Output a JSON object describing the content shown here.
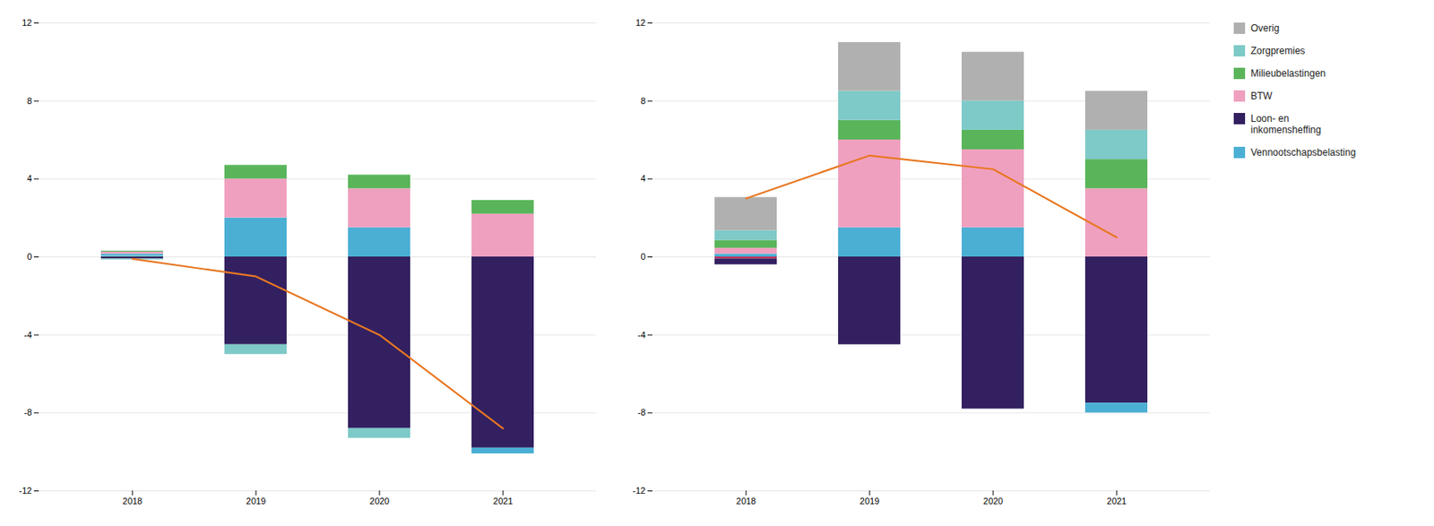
{
  "chart_data": [
    {
      "type": "bar",
      "stacked": true,
      "grid": true,
      "categories": [
        "2018",
        "2019",
        "2020",
        "2021"
      ],
      "ylim": [
        -12,
        12
      ],
      "yticks": [
        -12,
        -8,
        -4,
        0,
        4,
        8,
        12
      ],
      "series": [
        {
          "color": "#7ecac8",
          "values": [
            0.05,
            0.0,
            0.0,
            0.0
          ]
        },
        {
          "color": "#4bafd4",
          "values": [
            0.1,
            2.0,
            1.5,
            0.0
          ]
        },
        {
          "color": "#f0a0bf",
          "values": [
            0.1,
            2.0,
            2.0,
            2.2
          ]
        },
        {
          "color": "#5ab55a",
          "values": [
            0.05,
            0.7,
            0.7,
            0.7
          ]
        },
        {
          "color": "#332060",
          "values": [
            -0.1,
            -4.5,
            -8.8,
            -9.8
          ]
        },
        {
          "color": "#7ecac8",
          "values": [
            -0.05,
            -0.5,
            -0.5,
            0.0
          ]
        },
        {
          "color": "#4bafd4",
          "values": [
            0.0,
            0.0,
            0.0,
            -0.3
          ]
        },
        {
          "type": "line",
          "color": "#e87722",
          "values": [
            -0.1,
            -1.0,
            -4.0,
            -8.8
          ]
        }
      ]
    },
    {
      "type": "bar",
      "stacked": true,
      "grid": true,
      "legend": "right",
      "categories": [
        "2018",
        "2019",
        "2020",
        "2021"
      ],
      "ylim": [
        -12,
        12
      ],
      "yticks": [
        -12,
        -8,
        -4,
        0,
        4,
        8,
        12
      ],
      "series": [
        {
          "name": "Vennootschapsbelasting",
          "color": "#4bafd4",
          "values": [
            0.15,
            1.5,
            1.5,
            0.0
          ]
        },
        {
          "name": "BTW",
          "color": "#f0a0bf",
          "values": [
            0.3,
            4.5,
            4.0,
            3.5
          ]
        },
        {
          "name": "Milieubelastingen",
          "color": "#5ab55a",
          "values": [
            0.4,
            1.0,
            1.0,
            1.5
          ]
        },
        {
          "name": "Zorgpremies",
          "color": "#7ecac8",
          "values": [
            0.5,
            1.5,
            1.5,
            1.5
          ]
        },
        {
          "name": "Overig",
          "color": "#b0b0b0",
          "values": [
            1.7,
            2.5,
            2.5,
            2.0
          ]
        },
        {
          "color": "#c0305a",
          "values": [
            -0.1,
            0.0,
            0.0,
            0.0
          ]
        },
        {
          "name": "Loon- en\ninkomensheffing",
          "color": "#332060",
          "values": [
            -0.3,
            -4.5,
            -7.8,
            -7.5
          ]
        },
        {
          "name": "Vennootschapsbelasting",
          "color": "#4bafd4",
          "values": [
            0.0,
            0.0,
            0.0,
            -0.5
          ]
        },
        {
          "type": "line",
          "color": "#e87722",
          "values": [
            3.0,
            5.2,
            4.5,
            1.0
          ]
        }
      ]
    }
  ]
}
